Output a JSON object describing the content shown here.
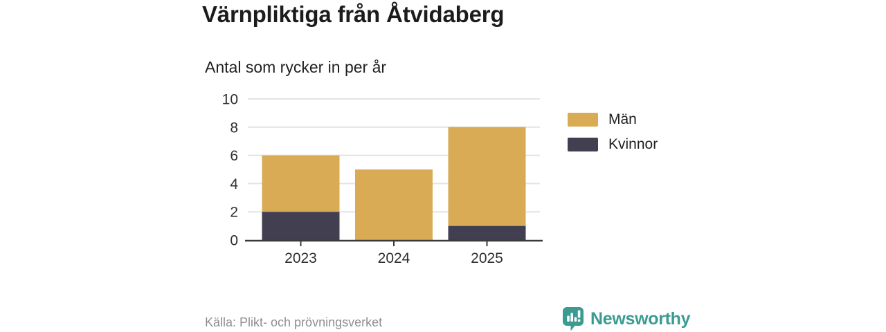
{
  "header": {
    "title": "Värnpliktiga från Åtvidaberg",
    "subtitle": "Antal som rycker in per år"
  },
  "chart_data": {
    "type": "bar",
    "stacked": true,
    "title": "Värnpliktiga från Åtvidaberg",
    "subtitle": "Antal som rycker in per år",
    "categories": [
      "2023",
      "2024",
      "2025"
    ],
    "series": [
      {
        "name": "Män",
        "color": "#D9AB55",
        "values": [
          4,
          5,
          7
        ]
      },
      {
        "name": "Kvinnor",
        "color": "#413F50",
        "values": [
          2,
          0,
          1
        ]
      }
    ],
    "stack_totals": [
      6,
      5,
      8
    ],
    "xlabel": "",
    "ylabel": "",
    "ylim": [
      0,
      10
    ],
    "yticks": [
      0,
      2,
      4,
      6,
      8,
      10
    ],
    "grid": true,
    "legend_position": "right"
  },
  "footer": {
    "source": "Källa: Plikt- och prövningsverket",
    "brand": "Newsworthy"
  },
  "colors": {
    "men": "#D9AB55",
    "women": "#413F50",
    "brand_teal": "#3A9B91",
    "grid_line": "#E3E3E3",
    "axis_line": "#3A3A3A",
    "tick_text": "#2F2F2F",
    "title_text": "#1C1C1C",
    "muted_text": "#8E8E8E"
  },
  "icons": {
    "brand_logo": "newsworthy-speech-bubble-bar-chart-icon"
  }
}
